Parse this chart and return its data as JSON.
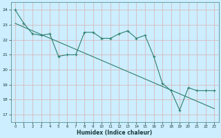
{
  "title": "",
  "xlabel": "Humidex (Indice chaleur)",
  "ylabel": "",
  "bg_color": "#cceeff",
  "grid_color": "#aaddcc",
  "line_color": "#2e7f6e",
  "xlim": [
    -0.5,
    23.5
  ],
  "ylim": [
    16.5,
    24.5
  ],
  "yticks": [
    17,
    18,
    19,
    20,
    21,
    22,
    23,
    24
  ],
  "xticks": [
    0,
    1,
    2,
    3,
    4,
    5,
    6,
    7,
    8,
    9,
    10,
    11,
    12,
    13,
    14,
    15,
    16,
    17,
    18,
    19,
    20,
    21,
    22,
    23
  ],
  "line1_x": [
    0,
    1,
    2,
    3,
    4,
    5,
    6,
    7,
    8,
    9,
    10,
    11,
    12,
    13,
    14,
    15,
    16,
    17,
    18,
    19,
    20,
    21,
    22,
    23
  ],
  "line1_y": [
    24.0,
    23.1,
    22.4,
    22.3,
    22.4,
    20.9,
    21.0,
    21.0,
    22.5,
    22.5,
    22.1,
    22.1,
    22.4,
    22.6,
    22.1,
    22.3,
    20.9,
    19.1,
    18.6,
    17.3,
    18.8,
    18.6,
    18.6,
    18.6
  ],
  "line2_x": [
    0,
    23
  ],
  "line2_y": [
    23.1,
    17.4
  ]
}
